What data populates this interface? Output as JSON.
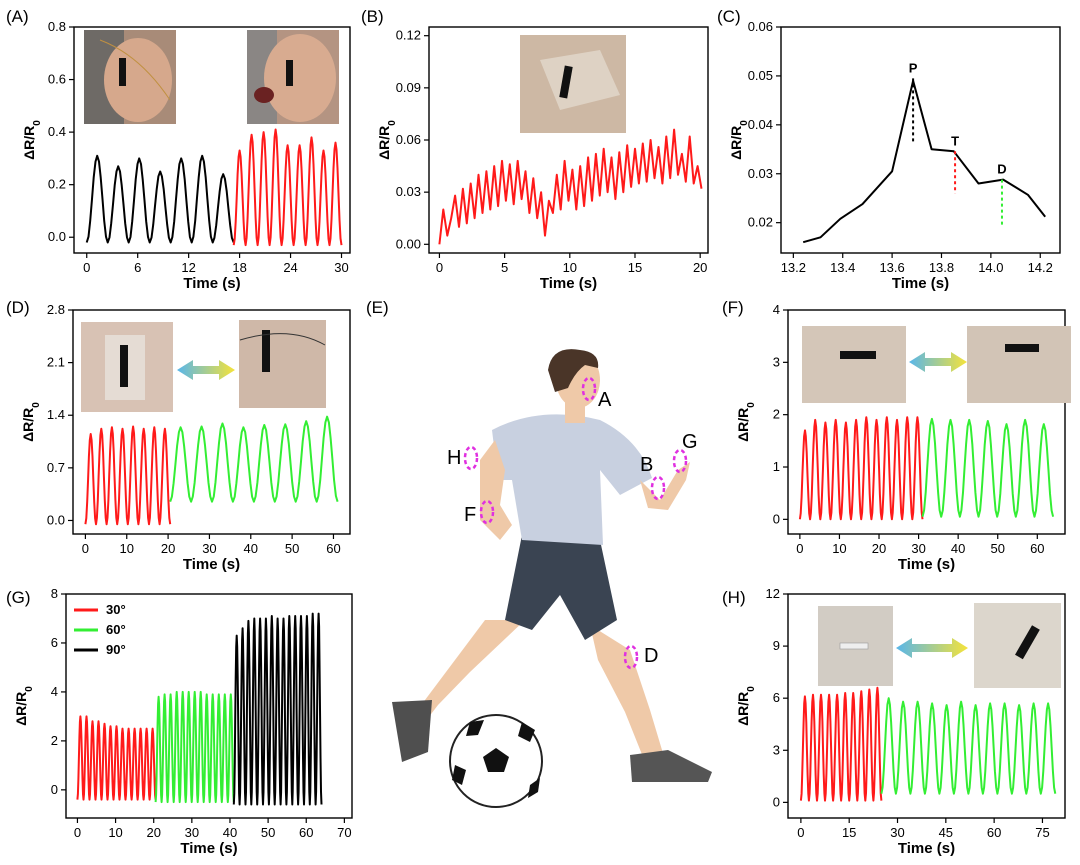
{
  "panel_labels": {
    "A": "(A)",
    "B": "(B)",
    "C": "(C)",
    "D": "(D)",
    "E": "(E)",
    "F": "(F)",
    "G": "(G)",
    "H": "(H)"
  },
  "y_axis_label": "ΔR/R",
  "y_axis_sub": "0",
  "x_axis_label": "Time (s)",
  "colors": {
    "red": "#ff1a1a",
    "green": "#33ee33",
    "black": "#000000",
    "magenta": "#e030e0",
    "shirt": "#c8d0e0",
    "shorts": "#3a4452",
    "skin": "#efc9a8",
    "hair": "#4a3528"
  },
  "body_markers": [
    "A",
    "B",
    "G",
    "H",
    "F",
    "D"
  ],
  "chart_data": [
    {
      "id": "A",
      "type": "line",
      "xlabel": "Time (s)",
      "ylabel": "ΔR/R0",
      "xlim": [
        -1.5,
        31
      ],
      "ylim": [
        -0.06,
        0.8
      ],
      "xticks": [
        0,
        6,
        12,
        18,
        24,
        30
      ],
      "yticks": [
        0.0,
        0.2,
        0.4,
        0.6,
        0.8
      ],
      "ytick_labels": [
        "0.0",
        "0.2",
        "0.4",
        "0.6",
        "0.8"
      ],
      "series": [
        {
          "color": "#000000",
          "periodic": {
            "x0": 0,
            "x1": 17.3,
            "period": 2.45,
            "low": -0.02,
            "high": [
              0.31,
              0.27,
              0.3,
              0.25,
              0.3,
              0.31,
              0.24
            ]
          }
        },
        {
          "color": "#ff1a1a",
          "periodic": {
            "x0": 17.3,
            "x1": 30,
            "period": 1.45,
            "low": -0.03,
            "high": [
              0.33,
              0.39,
              0.4,
              0.41,
              0.35,
              0.35,
              0.38,
              0.33,
              0.36
            ]
          }
        }
      ]
    },
    {
      "id": "B",
      "type": "line",
      "xlabel": "Time (s)",
      "ylabel": "ΔR/R0",
      "xlim": [
        -0.8,
        20.6
      ],
      "ylim": [
        -0.005,
        0.125
      ],
      "xticks": [
        0,
        5,
        10,
        15,
        20
      ],
      "yticks": [
        0.0,
        0.03,
        0.06,
        0.09,
        0.12
      ],
      "ytick_labels": [
        "0.00",
        "0.03",
        "0.06",
        "0.09",
        "0.12"
      ],
      "series": [
        {
          "color": "#ff1a1a",
          "points": [
            [
              0,
              0
            ],
            [
              0.3,
              0.02
            ],
            [
              0.6,
              0.005
            ],
            [
              0.9,
              0.015
            ],
            [
              1.2,
              0.028
            ],
            [
              1.5,
              0.01
            ],
            [
              1.8,
              0.032
            ],
            [
              2.1,
              0.012
            ],
            [
              2.4,
              0.035
            ],
            [
              2.7,
              0.015
            ],
            [
              3.0,
              0.04
            ],
            [
              3.3,
              0.018
            ],
            [
              3.6,
              0.042
            ],
            [
              3.9,
              0.02
            ],
            [
              4.2,
              0.045
            ],
            [
              4.5,
              0.022
            ],
            [
              4.8,
              0.048
            ],
            [
              5.1,
              0.025
            ],
            [
              5.4,
              0.046
            ],
            [
              5.7,
              0.023
            ],
            [
              6.0,
              0.048
            ],
            [
              6.3,
              0.026
            ],
            [
              6.6,
              0.042
            ],
            [
              6.9,
              0.018
            ],
            [
              7.2,
              0.038
            ],
            [
              7.5,
              0.015
            ],
            [
              7.8,
              0.03
            ],
            [
              8.1,
              0.005
            ],
            [
              8.4,
              0.025
            ],
            [
              8.7,
              0.018
            ],
            [
              9.0,
              0.04
            ],
            [
              9.3,
              0.02
            ],
            [
              9.6,
              0.048
            ],
            [
              9.9,
              0.025
            ],
            [
              10.2,
              0.043
            ],
            [
              10.5,
              0.02
            ],
            [
              10.8,
              0.045
            ],
            [
              11.1,
              0.022
            ],
            [
              11.4,
              0.05
            ],
            [
              11.7,
              0.025
            ],
            [
              12.0,
              0.052
            ],
            [
              12.3,
              0.028
            ],
            [
              12.6,
              0.055
            ],
            [
              12.9,
              0.03
            ],
            [
              13.2,
              0.05
            ],
            [
              13.5,
              0.026
            ],
            [
              13.8,
              0.053
            ],
            [
              14.1,
              0.03
            ],
            [
              14.4,
              0.057
            ],
            [
              14.7,
              0.033
            ],
            [
              15.0,
              0.055
            ],
            [
              15.3,
              0.035
            ],
            [
              15.6,
              0.058
            ],
            [
              15.9,
              0.036
            ],
            [
              16.2,
              0.06
            ],
            [
              16.5,
              0.038
            ],
            [
              16.8,
              0.056
            ],
            [
              17.1,
              0.035
            ],
            [
              17.4,
              0.062
            ],
            [
              17.7,
              0.038
            ],
            [
              18.0,
              0.066
            ],
            [
              18.3,
              0.04
            ],
            [
              18.6,
              0.052
            ],
            [
              18.9,
              0.036
            ],
            [
              19.2,
              0.062
            ],
            [
              19.5,
              0.035
            ],
            [
              19.8,
              0.045
            ],
            [
              20.1,
              0.032
            ]
          ]
        }
      ]
    },
    {
      "id": "C",
      "type": "line",
      "xlabel": "Time (s)",
      "ylabel": "ΔR/R0",
      "xlim": [
        13.15,
        14.28
      ],
      "ylim": [
        0.0138,
        0.06
      ],
      "xticks": [
        13.2,
        13.4,
        13.6,
        13.8,
        14.0,
        14.2
      ],
      "yticks": [
        0.02,
        0.03,
        0.04,
        0.05,
        0.06
      ],
      "xtick_labels": [
        "13.2",
        "13.4",
        "13.6",
        "13.8",
        "14.0",
        "14.2"
      ],
      "ytick_labels": [
        "0.02",
        "0.03",
        "0.04",
        "0.05",
        "0.06"
      ],
      "series": [
        {
          "color": "#000000",
          "points": [
            [
              13.24,
              0.016
            ],
            [
              13.31,
              0.017
            ],
            [
              13.39,
              0.0208
            ],
            [
              13.48,
              0.0238
            ],
            [
              13.6,
              0.0305
            ],
            [
              13.685,
              0.049
            ],
            [
              13.76,
              0.035
            ],
            [
              13.85,
              0.0346
            ],
            [
              13.95,
              0.028
            ],
            [
              14.05,
              0.0288
            ],
            [
              14.15,
              0.0257
            ],
            [
              14.22,
              0.0212
            ]
          ]
        }
      ],
      "annotations": [
        {
          "label": "P",
          "x": 13.685,
          "y": 0.0495,
          "y2": 0.0365,
          "color": "#000000"
        },
        {
          "label": "T",
          "x": 13.855,
          "y": 0.0346,
          "y2": 0.026,
          "color": "#ff1a1a"
        },
        {
          "label": "D",
          "x": 14.045,
          "y": 0.0288,
          "y2": 0.019,
          "color": "#33ee33"
        }
      ]
    },
    {
      "id": "D",
      "type": "line",
      "xlabel": "Time (s)",
      "ylabel": "ΔR/R0",
      "xlim": [
        -3,
        64
      ],
      "ylim": [
        -0.18,
        2.8
      ],
      "xticks": [
        0,
        10,
        20,
        30,
        40,
        50,
        60
      ],
      "yticks": [
        0.0,
        0.7,
        1.4,
        2.1,
        2.8
      ],
      "ytick_labels": [
        "0.0",
        "0.7",
        "1.4",
        "2.1",
        "2.8"
      ],
      "series": [
        {
          "color": "#ff1a1a",
          "periodic": {
            "x0": 0,
            "x1": 20.5,
            "period": 2.6,
            "low": -0.05,
            "high": [
              1.15,
              1.22,
              1.24,
              1.22,
              1.25,
              1.22,
              1.24,
              1.22
            ]
          }
        },
        {
          "color": "#33ee33",
          "periodic": {
            "x0": 20.5,
            "x1": 61,
            "period": 5.0,
            "low": 0.25,
            "high": [
              1.24,
              1.25,
              1.29,
              1.24,
              1.27,
              1.28,
              1.32,
              1.38
            ]
          }
        }
      ]
    },
    {
      "id": "F",
      "type": "line",
      "xlabel": "Time (s)",
      "ylabel": "ΔR/R0",
      "xlim": [
        -3,
        67
      ],
      "ylim": [
        -0.28,
        4
      ],
      "xticks": [
        0,
        10,
        20,
        30,
        40,
        50,
        60
      ],
      "yticks": [
        0,
        1,
        2,
        3,
        4
      ],
      "ytick_labels": [
        "0",
        "1",
        "2",
        "3",
        "4"
      ],
      "series": [
        {
          "color": "#ff1a1a",
          "periodic": {
            "x0": 0,
            "x1": 31,
            "period": 2.6,
            "low": 0,
            "high": [
              1.7,
              1.9,
              1.85,
              1.9,
              1.85,
              1.9,
              1.95,
              1.9,
              1.95,
              1.9,
              1.95,
              1.95
            ]
          }
        },
        {
          "color": "#33ee33",
          "periodic": {
            "x0": 31,
            "x1": 64,
            "period": 4.6,
            "low": 0.05,
            "high": [
              1.92,
              1.9,
              1.9,
              1.88,
              1.82,
              1.9,
              1.82
            ]
          }
        }
      ]
    },
    {
      "id": "G",
      "type": "line",
      "xlabel": "Time (s)",
      "ylabel": "ΔR/R0",
      "xlim": [
        -3,
        72
      ],
      "ylim": [
        -1.15,
        8
      ],
      "xticks": [
        0,
        10,
        20,
        30,
        40,
        50,
        60,
        70
      ],
      "yticks": [
        0,
        2,
        4,
        6,
        8
      ],
      "ytick_labels": [
        "0",
        "2",
        "4",
        "6",
        "8"
      ],
      "legend": {
        "position": "top-left",
        "entries": [
          {
            "name": "30°",
            "color": "#ff1a1a"
          },
          {
            "name": "60°",
            "color": "#33ee33"
          },
          {
            "name": "90°",
            "color": "#000000"
          }
        ]
      },
      "series": [
        {
          "name": "30°",
          "color": "#ff1a1a",
          "periodic": {
            "x0": 0,
            "x1": 20.5,
            "period": 1.55,
            "low": -0.4,
            "high": [
              3.0,
              3.0,
              2.8,
              2.8,
              2.7,
              2.6,
              2.6,
              2.5,
              2.5,
              2.5,
              2.5,
              2.5,
              2.5
            ]
          }
        },
        {
          "name": "60°",
          "color": "#33ee33",
          "periodic": {
            "x0": 20.5,
            "x1": 41,
            "period": 1.55,
            "low": -0.5,
            "high": [
              3.8,
              3.9,
              3.9,
              4.0,
              4.0,
              4.0,
              4.0,
              4.0,
              3.9,
              3.9,
              3.9,
              3.9,
              3.9
            ]
          }
        },
        {
          "name": "90°",
          "color": "#000000",
          "periodic": {
            "x0": 41,
            "x1": 64,
            "period": 1.55,
            "low": -0.6,
            "high": [
              6.3,
              6.6,
              6.9,
              7.0,
              7.0,
              7.0,
              7.1,
              7.0,
              7.0,
              7.1,
              7.1,
              7.1,
              7.1,
              7.2,
              7.2
            ]
          }
        }
      ]
    },
    {
      "id": "H",
      "type": "line",
      "xlabel": "Time (s)",
      "ylabel": "ΔR/R0",
      "xlim": [
        -4,
        82
      ],
      "ylim": [
        -0.9,
        12
      ],
      "xticks": [
        0,
        15,
        30,
        45,
        60,
        75
      ],
      "yticks": [
        0,
        3,
        6,
        9,
        12
      ],
      "ytick_labels": [
        "0",
        "3",
        "6",
        "9",
        "12"
      ],
      "series": [
        {
          "color": "#ff1a1a",
          "periodic": {
            "x0": 0,
            "x1": 25,
            "period": 2.55,
            "low": 0.1,
            "high": [
              6.1,
              6.2,
              6.2,
              6.2,
              6.2,
              6.3,
              6.3,
              6.4,
              6.5,
              6.6
            ]
          }
        },
        {
          "color": "#33ee33",
          "periodic": {
            "x0": 25,
            "x1": 79,
            "period": 4.5,
            "low": 0.5,
            "high": [
              6.0,
              5.8,
              5.8,
              5.7,
              5.6,
              5.8,
              5.6,
              5.7,
              5.7,
              5.6,
              5.7,
              5.7
            ]
          }
        }
      ]
    }
  ]
}
